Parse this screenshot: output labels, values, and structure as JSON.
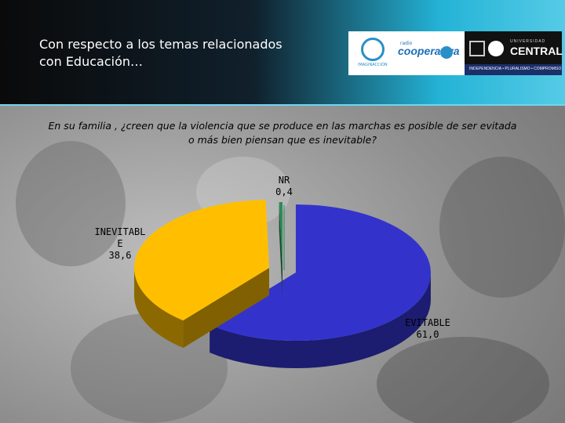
{
  "header": {
    "title_line1": "Con respecto a los temas relacionados",
    "title_line2": "con Educación…"
  },
  "logos": {
    "cooperativa": "cooperativa",
    "university_small": "UNIVERSIDAD",
    "university_name": "CENTRAL",
    "university_motto": "INDEPENDENCIA • PLURALISMO • COMPROMISO"
  },
  "question": "En su familia , ¿creen que la violencia que se produce en las marchas es posible de ser evitada o más bien piensan que es inevitable?",
  "colors": {
    "evitable": "#3333cc",
    "inevitable": "#ffbf00",
    "nr": "#2e8b57",
    "header_accent": "#24b3d6"
  },
  "chart_data": {
    "type": "pie",
    "title": "",
    "three_d": true,
    "slices": [
      {
        "label": "EVITABLE",
        "value": 61.0,
        "display": "61,0"
      },
      {
        "label": "INEVITABLE",
        "value": 38.6,
        "display": "38,6"
      },
      {
        "label": "NR",
        "value": 0.4,
        "display": "0,4"
      }
    ],
    "label_lines": {
      "EVITABLE": [
        "EVITABLE",
        "61,0"
      ],
      "INEVITABLE": [
        "INEVITABL",
        "E",
        "38,6"
      ],
      "NR": [
        "NR",
        "0,4"
      ]
    }
  }
}
